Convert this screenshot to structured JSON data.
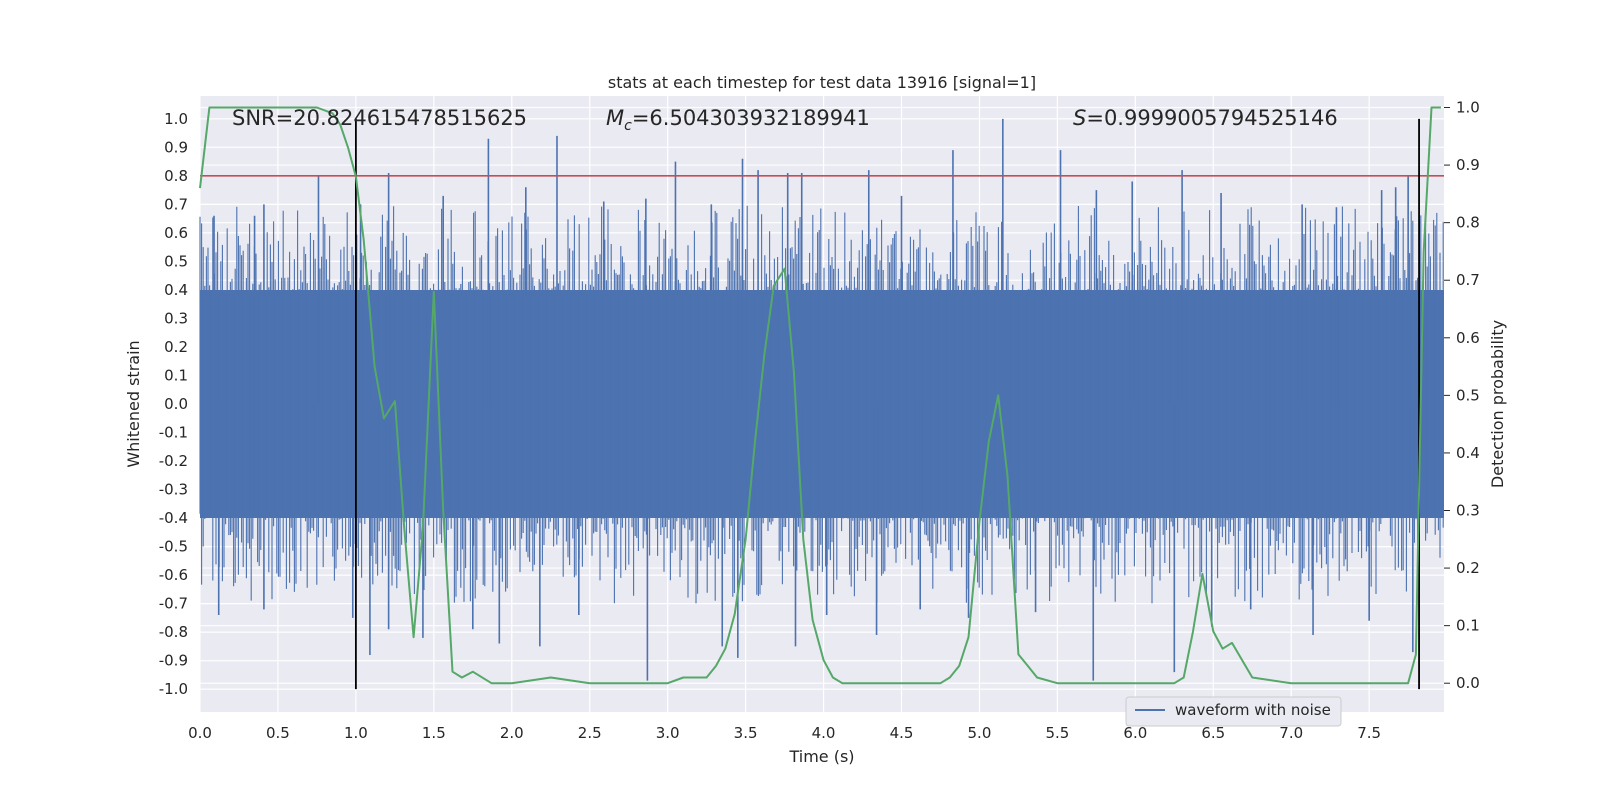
{
  "chart_data": {
    "type": "line",
    "title": "stats at each timestep for test data 13916 [signal=1]",
    "xlabel": "Time (s)",
    "ylabel": "Whitened strain",
    "y2label": "Detection probability",
    "xlim": [
      0.0,
      7.98
    ],
    "ylim": [
      -1.08,
      1.08
    ],
    "y2lim": [
      -0.05,
      1.02
    ],
    "xticks": [
      "0.0",
      "0.5",
      "1.0",
      "1.5",
      "2.0",
      "2.5",
      "3.0",
      "3.5",
      "4.0",
      "4.5",
      "5.0",
      "5.5",
      "6.0",
      "6.5",
      "7.0",
      "7.5"
    ],
    "yticks": [
      "-1.0",
      "-0.9",
      "-0.8",
      "-0.7",
      "-0.6",
      "-0.5",
      "-0.4",
      "-0.3",
      "-0.2",
      "-0.1",
      "0.0",
      "0.1",
      "0.2",
      "0.3",
      "0.4",
      "0.5",
      "0.6",
      "0.7",
      "0.8",
      "0.9",
      "1.0"
    ],
    "y2ticks": [
      "0.0",
      "0.1",
      "0.2",
      "0.3",
      "0.4",
      "0.5",
      "0.6",
      "0.7",
      "0.8",
      "0.9",
      "1.0"
    ],
    "grid": true,
    "legend": {
      "entries": [
        "waveform with noise"
      ],
      "placement": "lower-right"
    },
    "annotations": {
      "snr": "SNR=20.824615478515625",
      "mc_symbol": "M",
      "mc_sub": "c",
      "mc_value": "=6.504303932189941",
      "s_symbol": "S",
      "s_value": "=0.9999005794525146"
    },
    "threshold": 0.8,
    "vlines": [
      1.0,
      7.82
    ],
    "series": [
      {
        "name": "waveform with noise",
        "color": "#4c72b0",
        "dense_noise_band": [
          -0.4,
          0.4
        ],
        "spikes": [
          [
            0.09,
            0.66
          ],
          [
            0.35,
            0.66
          ],
          [
            0.41,
            0.7
          ],
          [
            0.76,
            0.8
          ],
          [
            1.03,
            0.7
          ],
          [
            1.21,
            0.81
          ],
          [
            1.56,
            0.73
          ],
          [
            1.85,
            0.93
          ],
          [
            2.09,
            0.76
          ],
          [
            2.29,
            0.94
          ],
          [
            2.59,
            0.71
          ],
          [
            2.86,
            0.72
          ],
          [
            3.05,
            0.85
          ],
          [
            3.28,
            0.7
          ],
          [
            3.48,
            0.86
          ],
          [
            3.58,
            0.82
          ],
          [
            3.77,
            0.81
          ],
          [
            3.86,
            0.81
          ],
          [
            4.29,
            0.82
          ],
          [
            4.5,
            0.73
          ],
          [
            4.83,
            0.89
          ],
          [
            5.15,
            1.0
          ],
          [
            5.52,
            0.89
          ],
          [
            5.75,
            0.75
          ],
          [
            5.98,
            0.78
          ],
          [
            6.3,
            0.82
          ],
          [
            6.55,
            0.74
          ],
          [
            7.07,
            0.7
          ],
          [
            7.29,
            0.69
          ],
          [
            7.58,
            0.75
          ],
          [
            7.67,
            0.76
          ],
          [
            7.75,
            0.8
          ],
          [
            0.12,
            -0.74
          ],
          [
            0.41,
            -0.72
          ],
          [
            0.98,
            -0.75
          ],
          [
            1.09,
            -0.88
          ],
          [
            1.21,
            -0.79
          ],
          [
            1.43,
            -0.82
          ],
          [
            1.75,
            -0.79
          ],
          [
            1.92,
            -0.84
          ],
          [
            2.18,
            -0.85
          ],
          [
            2.43,
            -0.74
          ],
          [
            2.87,
            -0.97
          ],
          [
            3.35,
            -0.85
          ],
          [
            3.45,
            -0.89
          ],
          [
            3.82,
            -0.85
          ],
          [
            4.02,
            -0.74
          ],
          [
            4.34,
            -0.81
          ],
          [
            4.62,
            -0.72
          ],
          [
            4.93,
            -0.75
          ],
          [
            5.36,
            -0.73
          ],
          [
            5.73,
            -0.97
          ],
          [
            6.25,
            -0.94
          ],
          [
            6.49,
            -0.78
          ],
          [
            6.74,
            -0.72
          ],
          [
            7.14,
            -0.81
          ],
          [
            7.5,
            -0.76
          ],
          [
            7.78,
            -0.87
          ]
        ]
      },
      {
        "name": "detection probability",
        "color": "#55a868",
        "axis": "right",
        "x": [
          0.0,
          0.06,
          0.12,
          0.25,
          0.5,
          0.75,
          0.85,
          0.9,
          0.95,
          1.0,
          1.05,
          1.12,
          1.18,
          1.25,
          1.31,
          1.37,
          1.43,
          1.5,
          1.56,
          1.62,
          1.68,
          1.75,
          1.87,
          2.0,
          2.25,
          2.5,
          2.75,
          3.0,
          3.1,
          3.25,
          3.31,
          3.37,
          3.43,
          3.5,
          3.56,
          3.62,
          3.68,
          3.75,
          3.81,
          3.87,
          3.93,
          4.0,
          4.06,
          4.12,
          4.25,
          4.5,
          4.75,
          4.81,
          4.87,
          4.93,
          5.0,
          5.06,
          5.12,
          5.18,
          5.25,
          5.31,
          5.37,
          5.5,
          5.75,
          6.0,
          6.25,
          6.31,
          6.37,
          6.43,
          6.5,
          6.56,
          6.62,
          6.75,
          7.0,
          7.25,
          7.5,
          7.75,
          7.8,
          7.85,
          7.9,
          7.96
        ],
        "values": [
          0.86,
          1.0,
          1.0,
          1.0,
          1.0,
          1.0,
          0.99,
          0.97,
          0.93,
          0.88,
          0.77,
          0.55,
          0.46,
          0.49,
          0.27,
          0.08,
          0.27,
          0.68,
          0.3,
          0.02,
          0.01,
          0.02,
          0.0,
          0.0,
          0.01,
          0.0,
          0.0,
          0.0,
          0.01,
          0.01,
          0.03,
          0.06,
          0.12,
          0.25,
          0.42,
          0.57,
          0.69,
          0.72,
          0.54,
          0.25,
          0.11,
          0.04,
          0.01,
          0.0,
          0.0,
          0.0,
          0.0,
          0.01,
          0.03,
          0.08,
          0.28,
          0.42,
          0.5,
          0.36,
          0.05,
          0.03,
          0.01,
          0.0,
          0.0,
          0.0,
          0.0,
          0.01,
          0.09,
          0.19,
          0.09,
          0.06,
          0.07,
          0.01,
          0.0,
          0.0,
          0.0,
          0.0,
          0.05,
          0.75,
          1.0,
          1.0
        ]
      }
    ]
  }
}
